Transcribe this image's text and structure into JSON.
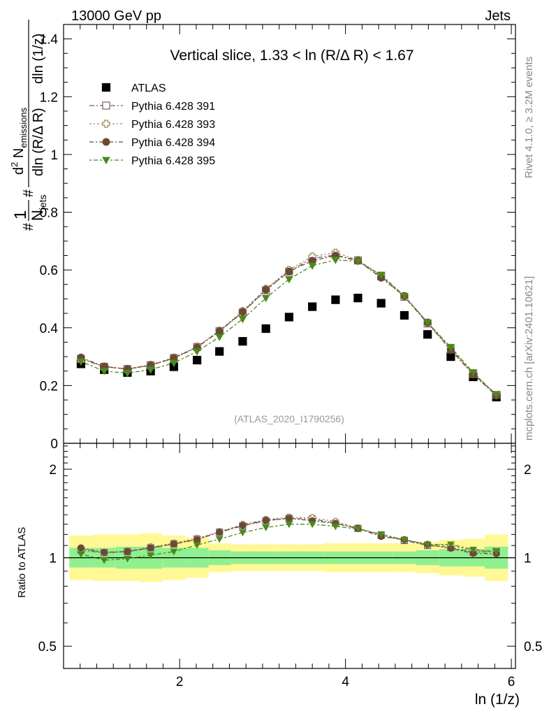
{
  "header": {
    "left": "13000 GeV pp",
    "right": "Jets"
  },
  "side_labels": {
    "rivet": "Rivet 4.1.0, ≥ 3.2M events",
    "mcplots": "mcplots.cern.ch [arXiv:2401.10621]"
  },
  "main_plot": {
    "title": "Vertical slice, 1.33 < ln (R/Δ R) < 1.67",
    "analysis_id": "(ATLAS_2020_I1790256)",
    "ylabel_parts": {
      "hash1": "#",
      "one": "1",
      "njets": "N",
      "njets_sub": "jets",
      "hash2": "#",
      "dlnR": "dln (R/Δ R)",
      "d2": "d",
      "d2_sup": "2",
      "nemis": " N",
      "nemis_sub": "emissions",
      "dlnz": "dln (1/z)"
    },
    "yticks": [
      "0",
      "0.2",
      "0.4",
      "0.6",
      "0.8",
      "1",
      "1.2",
      "1.4"
    ]
  },
  "ratio_plot": {
    "ylabel": "Ratio to ATLAS",
    "yticks_left": [
      "0.5",
      "1",
      "2"
    ],
    "yticks_right": [
      "0.5",
      "1",
      "2"
    ]
  },
  "xaxis": {
    "label": "ln (1/z)",
    "ticks": [
      "2",
      "4",
      "6"
    ]
  },
  "legend": [
    {
      "label": "ATLAS",
      "marker": "square-filled",
      "color": "#000000"
    },
    {
      "label": "Pythia 6.428 391",
      "marker": "square-open",
      "color": "#7a5a6a"
    },
    {
      "label": "Pythia 6.428 393",
      "marker": "cross-open",
      "color": "#9a8a5a"
    },
    {
      "label": "Pythia 6.428 394",
      "marker": "circle-filled",
      "color": "#6b4a34"
    },
    {
      "label": "Pythia 6.428 395",
      "marker": "triangle-down-filled",
      "color": "#4a8a1a"
    }
  ],
  "chart_data": {
    "type": "scatter",
    "xlabel": "ln (1/z)",
    "ylabel": "1/N_jets d²N_emissions / dln(R/ΔR) dln(1/z)",
    "xlim": [
      0.6,
      6.05
    ],
    "ylim": [
      0,
      1.45
    ],
    "x": [
      0.81,
      1.09,
      1.37,
      1.65,
      1.93,
      2.21,
      2.48,
      2.76,
      3.04,
      3.32,
      3.6,
      3.88,
      4.15,
      4.43,
      4.71,
      4.99,
      5.27,
      5.54,
      5.82
    ],
    "bin_edges": [
      0.67,
      0.95,
      1.23,
      1.51,
      1.79,
      2.07,
      2.35,
      2.62,
      2.9,
      3.18,
      3.46,
      3.74,
      4.02,
      4.29,
      4.57,
      4.85,
      5.13,
      5.41,
      5.68,
      5.96
    ],
    "series": [
      {
        "name": "ATLAS",
        "values": [
          0.275,
          0.255,
          0.245,
          0.25,
          0.265,
          0.288,
          0.318,
          0.353,
          0.397,
          0.437,
          0.473,
          0.497,
          0.503,
          0.485,
          0.443,
          0.377,
          0.3,
          0.23,
          0.16
        ]
      },
      {
        "name": "Pythia 6.428 391",
        "values": [
          0.292,
          0.265,
          0.257,
          0.27,
          0.295,
          0.333,
          0.388,
          0.453,
          0.53,
          0.595,
          0.64,
          0.652,
          0.633,
          0.578,
          0.507,
          0.415,
          0.325,
          0.24,
          0.168
        ]
      },
      {
        "name": "Pythia 6.428 393",
        "values": [
          0.295,
          0.265,
          0.258,
          0.272,
          0.297,
          0.335,
          0.39,
          0.458,
          0.535,
          0.6,
          0.647,
          0.66,
          0.635,
          0.58,
          0.51,
          0.418,
          0.33,
          0.243,
          0.168
        ]
      },
      {
        "name": "Pythia 6.428 394",
        "values": [
          0.297,
          0.266,
          0.257,
          0.27,
          0.295,
          0.332,
          0.388,
          0.455,
          0.532,
          0.595,
          0.632,
          0.65,
          0.632,
          0.573,
          0.51,
          0.418,
          0.323,
          0.238,
          0.165
        ]
      },
      {
        "name": "Pythia 6.428 395",
        "values": [
          0.283,
          0.25,
          0.243,
          0.255,
          0.278,
          0.318,
          0.368,
          0.43,
          0.503,
          0.568,
          0.615,
          0.635,
          0.63,
          0.583,
          0.51,
          0.418,
          0.333,
          0.245,
          0.168
        ]
      }
    ],
    "ratio": {
      "ylabel": "Ratio to ATLAS",
      "ylim": [
        0.42,
        2.45
      ],
      "yscale": "log",
      "band_inner": [
        1.08,
        1.08,
        1.09,
        1.09,
        1.08,
        1.08,
        1.06,
        1.05,
        1.05,
        1.05,
        1.05,
        1.05,
        1.05,
        1.05,
        1.05,
        1.06,
        1.07,
        1.07,
        1.09
      ],
      "band_outer": [
        1.19,
        1.2,
        1.2,
        1.21,
        1.19,
        1.17,
        1.12,
        1.11,
        1.11,
        1.11,
        1.11,
        1.12,
        1.12,
        1.12,
        1.12,
        1.13,
        1.15,
        1.16,
        1.2
      ]
    }
  }
}
